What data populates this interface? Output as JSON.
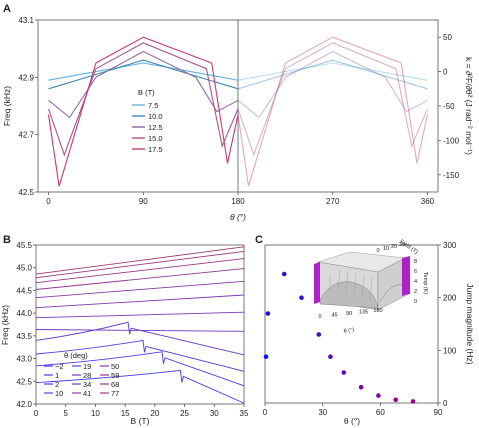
{
  "chart_data": [
    {
      "panel": "A",
      "type": "line",
      "xlabel": "θ (°)",
      "ylabel": "Freq (kHz)",
      "y2label": "k = ∂²F/∂θ² (J rad⁻² mol⁻¹)",
      "xlim": [
        -10,
        370
      ],
      "ylim": [
        42.5,
        43.1
      ],
      "y2lim": [
        -175,
        75
      ],
      "xticks": [
        "0",
        "90",
        "180",
        "270",
        "360"
      ],
      "yticks": [
        "42.5",
        "42.7",
        "42.9",
        "43.1"
      ],
      "y2ticks": [
        "-150",
        "-100",
        "-50",
        "0",
        "50"
      ],
      "vline_x": 180,
      "legend_title": "B (T)",
      "legend_position": "center-left",
      "series": [
        {
          "name": "7.5",
          "color": "#64b4dc",
          "x": [
            0,
            45,
            90,
            135,
            180,
            225,
            270,
            315,
            360
          ],
          "values": [
            42.89,
            42.92,
            42.95,
            42.92,
            42.89,
            42.92,
            42.95,
            42.92,
            42.89
          ]
        },
        {
          "name": "10.0",
          "color": "#3a88b8",
          "x": [
            0,
            45,
            90,
            135,
            180,
            225,
            270,
            315,
            360
          ],
          "values": [
            42.86,
            42.91,
            42.96,
            42.91,
            42.86,
            42.91,
            42.96,
            42.91,
            42.86
          ]
        },
        {
          "name": "12.5",
          "color": "#8a6aa8",
          "x": [
            0,
            20,
            45,
            90,
            140,
            160,
            180,
            200,
            225,
            270,
            320,
            340,
            360
          ],
          "values": [
            42.82,
            42.76,
            42.9,
            42.99,
            42.9,
            42.78,
            42.82,
            42.76,
            42.9,
            42.99,
            42.9,
            42.78,
            42.82
          ]
        },
        {
          "name": "15.0",
          "color": "#a85888",
          "x": [
            0,
            15,
            45,
            90,
            150,
            165,
            180,
            195,
            225,
            270,
            330,
            345,
            360
          ],
          "values": [
            42.79,
            42.63,
            42.93,
            43.02,
            42.93,
            42.66,
            42.79,
            42.63,
            42.93,
            43.02,
            42.93,
            42.66,
            42.79
          ]
        },
        {
          "name": "17.5",
          "color": "#c03a78",
          "x": [
            0,
            10,
            45,
            90,
            155,
            170,
            180,
            190,
            225,
            270,
            335,
            350,
            360
          ],
          "values": [
            42.77,
            42.52,
            42.95,
            43.04,
            42.95,
            42.6,
            42.77,
            42.52,
            42.95,
            43.04,
            42.95,
            42.6,
            42.77
          ]
        }
      ]
    },
    {
      "panel": "B",
      "type": "line",
      "xlabel": "B (T)",
      "ylabel": "Freq (kHz)",
      "xlim": [
        0,
        35
      ],
      "ylim": [
        42.0,
        45.5
      ],
      "xticks": [
        "0",
        "5",
        "10",
        "15",
        "20",
        "25",
        "30",
        "35"
      ],
      "yticks": [
        "42.0",
        "42.5",
        "43.0",
        "43.5",
        "44.0",
        "44.5",
        "45.0",
        "45.5"
      ],
      "legend_title": "θ (deg)",
      "legend_position": "bottom-left",
      "legend_entries": [
        "−2",
        "1",
        "2",
        "10",
        "19",
        "28",
        "34",
        "41",
        "50",
        "59",
        "68",
        "77"
      ],
      "series": [
        {
          "name": "−2",
          "color": "#3a3af0",
          "x": [
            0,
            24.3,
            35
          ],
          "values": [
            42.47,
            42.74,
            42.02
          ]
        },
        {
          "name": "1",
          "color": "#4a3ae6",
          "x": [
            0,
            21.2,
            35
          ],
          "values": [
            42.84,
            43.15,
            42.4
          ]
        },
        {
          "name": "2",
          "color": "#5838dc",
          "x": [
            0,
            18.0,
            35
          ],
          "values": [
            43.1,
            43.4,
            42.72
          ]
        },
        {
          "name": "10",
          "color": "#6638d0",
          "x": [
            0,
            15.5,
            35
          ],
          "values": [
            43.4,
            43.8,
            43.08
          ]
        },
        {
          "name": "19",
          "color": "#7236c4",
          "x": [
            0,
            35
          ],
          "values": [
            43.64,
            43.6
          ]
        },
        {
          "name": "28",
          "color": "#7c38b8",
          "x": [
            0,
            35
          ],
          "values": [
            43.9,
            44.02
          ]
        },
        {
          "name": "34",
          "color": "#8238ac",
          "x": [
            0,
            35
          ],
          "values": [
            44.12,
            44.4
          ]
        },
        {
          "name": "41",
          "color": "#8a38a0",
          "x": [
            0,
            35
          ],
          "values": [
            44.34,
            44.7
          ]
        },
        {
          "name": "50",
          "color": "#903894",
          "x": [
            0,
            35
          ],
          "values": [
            44.52,
            44.98
          ]
        },
        {
          "name": "59",
          "color": "#96388a",
          "x": [
            0,
            35
          ],
          "values": [
            44.67,
            45.2
          ]
        },
        {
          "name": "68",
          "color": "#9a3880",
          "x": [
            0,
            35
          ],
          "values": [
            44.78,
            45.36
          ]
        },
        {
          "name": "77",
          "color": "#9c3876",
          "x": [
            0,
            35
          ],
          "values": [
            44.86,
            45.46
          ]
        }
      ]
    },
    {
      "panel": "C",
      "type": "scatter",
      "xlabel": "θ (°)",
      "ylabel": "Jump magnitude (Hz)",
      "xlim": [
        0,
        90
      ],
      "ylim": [
        0,
        300
      ],
      "xticks": [
        "0",
        "30",
        "60",
        "90"
      ],
      "yticks": [
        "0",
        "100",
        "200",
        "300"
      ],
      "series": [
        {
          "name": "",
          "x": [
            0.5,
            1.5,
            10,
            19,
            28,
            34,
            41,
            50,
            59,
            68,
            77
          ],
          "values": [
            88,
            170,
            245,
            200,
            130,
            88,
            58,
            30,
            14,
            6,
            3
          ],
          "color_start": "#1010ee",
          "color_end": "#a00090"
        }
      ],
      "inset": {
        "xlabel": "θ (°)",
        "y1label": "Field (T)",
        "zlabel": "Temp (K)",
        "xticks": [
          "0",
          "45",
          "90",
          "135",
          "180"
        ],
        "y1ticks": [
          "0",
          "10",
          "20",
          "30"
        ],
        "zticks": [
          "0",
          "2",
          "4",
          "6",
          "8"
        ]
      }
    }
  ],
  "labels": {
    "A": "A",
    "B": "B",
    "C": "C"
  }
}
